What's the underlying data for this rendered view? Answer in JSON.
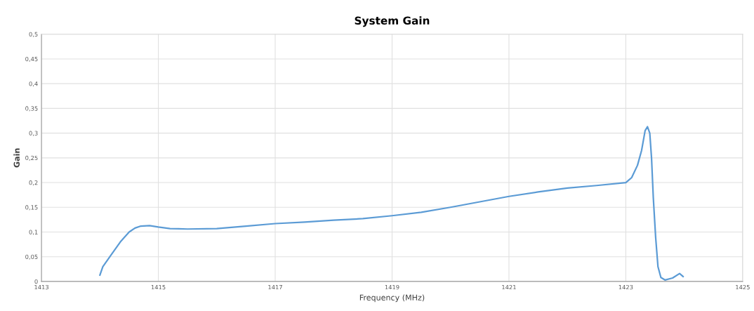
{
  "chart_data": {
    "type": "line",
    "title": "System Gain",
    "xlabel": "Frequency (MHz)",
    "ylabel": "Gain",
    "xlim": [
      1413,
      1425
    ],
    "xticks": [
      1413,
      1415,
      1417,
      1419,
      1421,
      1423,
      1425
    ],
    "ylim": [
      0,
      0.5
    ],
    "yticks": [
      0,
      {
        "value": 0.05,
        "label": "0,05"
      },
      {
        "value": 0.1,
        "label": "0,1"
      },
      {
        "value": 0.15,
        "label": "0,15"
      },
      {
        "value": 0.2,
        "label": "0,2"
      },
      {
        "value": 0.25,
        "label": "0,25"
      },
      {
        "value": 0.3,
        "label": "0,3"
      },
      {
        "value": 0.35,
        "label": "0,35"
      },
      {
        "value": 0.4,
        "label": "0,4"
      },
      {
        "value": 0.45,
        "label": "0,45"
      },
      {
        "value": 0.5,
        "label": "0,5"
      }
    ],
    "grid": true,
    "marker": "none",
    "line_style": "solid",
    "series": [
      {
        "color": "#5b9bd5",
        "x": [
          1414.0,
          1414.05,
          1414.2,
          1414.35,
          1414.5,
          1414.6,
          1414.7,
          1414.85,
          1415.0,
          1415.2,
          1415.5,
          1416.0,
          1416.5,
          1417.0,
          1417.5,
          1418.0,
          1418.5,
          1419.0,
          1419.5,
          1420.0,
          1420.5,
          1421.0,
          1421.5,
          1422.0,
          1422.5,
          1423.0,
          1423.1,
          1423.2,
          1423.27,
          1423.33,
          1423.37,
          1423.41,
          1423.44,
          1423.47,
          1423.51,
          1423.55,
          1423.6,
          1423.67,
          1423.8,
          1423.92,
          1423.98
        ],
        "values": [
          0.013,
          0.03,
          0.055,
          0.08,
          0.1,
          0.108,
          0.112,
          0.113,
          0.11,
          0.107,
          0.106,
          0.107,
          0.112,
          0.117,
          0.12,
          0.124,
          0.127,
          0.133,
          0.14,
          0.15,
          0.161,
          0.172,
          0.181,
          0.189,
          0.194,
          0.2,
          0.21,
          0.235,
          0.265,
          0.305,
          0.313,
          0.3,
          0.25,
          0.17,
          0.09,
          0.03,
          0.008,
          0.003,
          0.007,
          0.016,
          0.01
        ]
      }
    ]
  }
}
